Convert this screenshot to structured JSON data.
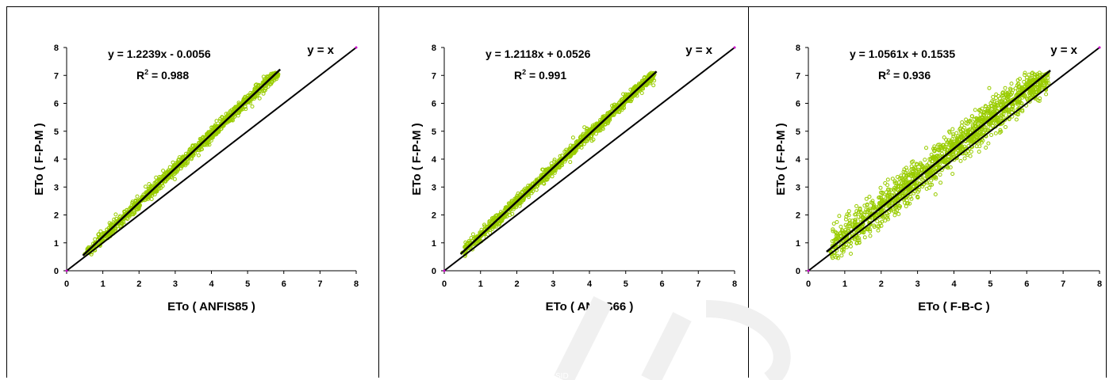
{
  "figure": {
    "watermark_text": "SID"
  },
  "chart_data": [
    {
      "type": "scatter",
      "xlabel": "ETo ( ANFIS85 )",
      "ylabel": "ETo ( F-P-M )",
      "xlim": [
        0,
        8
      ],
      "ylim": [
        0,
        8
      ],
      "xticks": [
        "0",
        "1",
        "2",
        "3",
        "4",
        "5",
        "6",
        "7",
        "8"
      ],
      "yticks": [
        "0",
        "1",
        "2",
        "3",
        "4",
        "5",
        "6",
        "7",
        "8"
      ],
      "grid": false,
      "marker_color": "#99cc00",
      "equation": "y = 1.2239x - 0.0056",
      "r2_base": "R",
      "r2_sup": "2",
      "r2_value": " = 0.988",
      "identity_label": "y = x",
      "fit": {
        "slope": 1.2239,
        "intercept": -0.0056,
        "x_range": [
          0.45,
          5.9
        ]
      },
      "points": [
        [
          0.5,
          0.6
        ],
        [
          1,
          1.2
        ],
        [
          2,
          2.4
        ],
        [
          3,
          3.7
        ],
        [
          4,
          4.9
        ],
        [
          5,
          6.1
        ],
        [
          5.6,
          6.8
        ]
      ]
    },
    {
      "type": "scatter",
      "xlabel": "ETo ( ANFIS66 )",
      "ylabel": "ETo ( F-P-M )",
      "xlim": [
        0,
        8
      ],
      "ylim": [
        0,
        8
      ],
      "xticks": [
        "0",
        "1",
        "2",
        "3",
        "4",
        "5",
        "6",
        "7",
        "8"
      ],
      "yticks": [
        "0",
        "1",
        "2",
        "3",
        "4",
        "5",
        "6",
        "7",
        "8"
      ],
      "grid": false,
      "marker_color": "#99cc00",
      "equation": "y = 1.2118x + 0.0526",
      "r2_base": "R",
      "r2_sup": "2",
      "r2_value": " = 0.991",
      "identity_label": "y = x",
      "fit": {
        "slope": 1.2118,
        "intercept": 0.0526,
        "x_range": [
          0.45,
          5.85
        ]
      },
      "points": [
        [
          0.5,
          0.65
        ],
        [
          1,
          1.25
        ],
        [
          2,
          2.45
        ],
        [
          3,
          3.7
        ],
        [
          4,
          4.9
        ],
        [
          5,
          6.1
        ],
        [
          5.7,
          6.95
        ]
      ]
    },
    {
      "type": "scatter",
      "xlabel": "ETo ( F-B-C )",
      "ylabel": "ETo ( F-P-M )",
      "xlim": [
        0,
        8
      ],
      "ylim": [
        0,
        8
      ],
      "xticks": [
        "0",
        "1",
        "2",
        "3",
        "4",
        "5",
        "6",
        "7",
        "8"
      ],
      "yticks": [
        "0",
        "1",
        "2",
        "3",
        "4",
        "5",
        "6",
        "7",
        "8"
      ],
      "grid": false,
      "marker_color": "#99cc00",
      "equation": "y = 1.0561x + 0.1535",
      "r2_base": "R",
      "r2_sup": "2",
      "r2_value": " = 0.936",
      "identity_label": "y = x",
      "fit": {
        "slope": 1.0561,
        "intercept": 0.1535,
        "x_range": [
          0.5,
          6.65
        ]
      },
      "points": [
        [
          0.6,
          0.7
        ],
        [
          1,
          1.2
        ],
        [
          2,
          2.3
        ],
        [
          3,
          3.3
        ],
        [
          4,
          4.4
        ],
        [
          5,
          5.4
        ],
        [
          6,
          6.5
        ]
      ]
    }
  ]
}
